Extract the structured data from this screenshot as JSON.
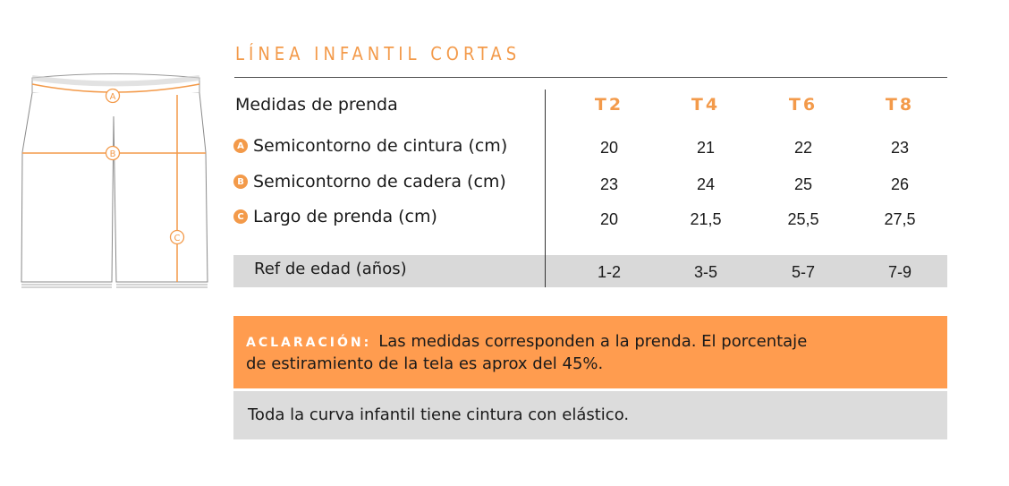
{
  "title": "LÍNEA INFANTIL CORTAS",
  "table": {
    "header_label": "Medidas de prenda",
    "sizes": [
      "T2",
      "T4",
      "T6",
      "T8"
    ],
    "rows": [
      {
        "badge": "A",
        "label": "Semicontorno de cintura (cm)",
        "values": [
          "20",
          "21",
          "22",
          "23"
        ]
      },
      {
        "badge": "B",
        "label": "Semicontorno de cadera (cm)",
        "values": [
          "23",
          "24",
          "25",
          "26"
        ]
      },
      {
        "badge": "C",
        "label": "Largo de prenda (cm)",
        "values": [
          "20",
          "21,5",
          "25,5",
          "27,5"
        ]
      }
    ],
    "ref_row": {
      "label": "Ref de edad (años)",
      "values": [
        "1-2",
        "3-5",
        "5-7",
        "7-9"
      ]
    }
  },
  "note": {
    "key": "ACLARACIÓN:",
    "text_line1": "Las medidas corresponden a la prenda. El porcentaje",
    "text_line2": "de estiramiento de la tela es aprox del 45%."
  },
  "info": "Toda la curva infantil tiene cintura con elástico.",
  "diagram": {
    "marker_a": "A",
    "marker_b": "B",
    "marker_c": "C"
  },
  "colors": {
    "accent": "#f39a4a",
    "note_bg": "#ff9c4f",
    "gray_bg": "#d9d9d9"
  }
}
